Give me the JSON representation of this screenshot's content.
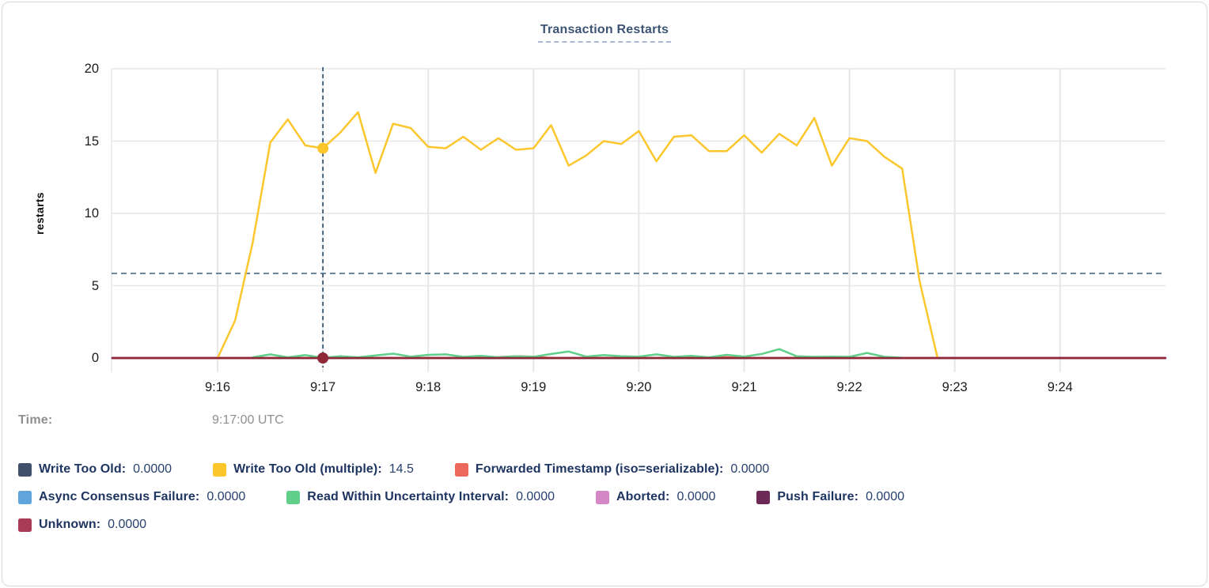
{
  "chart": {
    "title": "Transaction Restarts"
  },
  "chart_data": {
    "type": "line",
    "title": "Transaction Restarts",
    "xlabel": "",
    "ylabel": "restarts",
    "ylim": [
      0,
      20
    ],
    "grid": true,
    "legend_position": "bottom",
    "y_ticks": [
      {
        "label": "0",
        "value": 0
      },
      {
        "label": "5",
        "value": 5
      },
      {
        "label": "10",
        "value": 10
      },
      {
        "label": "15",
        "value": 15
      },
      {
        "label": "20",
        "value": 20
      }
    ],
    "x_ticks": [
      {
        "label": "9:16",
        "sec": 0
      },
      {
        "label": "9:17",
        "sec": 60
      },
      {
        "label": "9:18",
        "sec": 120
      },
      {
        "label": "9:19",
        "sec": 180
      },
      {
        "label": "9:20",
        "sec": 240
      },
      {
        "label": "9:21",
        "sec": 300
      },
      {
        "label": "9:22",
        "sec": 360
      },
      {
        "label": "9:23",
        "sec": 420
      },
      {
        "label": "9:24",
        "sec": 480
      }
    ],
    "colors": {
      "gridline": "#e7e7e7",
      "crosshair_vertical": "#2e5170",
      "crosshair_horizontal": "#4a6d8c"
    },
    "hover": {
      "time_label": "Time:",
      "time": "9:17:00 UTC",
      "x_sec": 60,
      "hline_value": 5.85,
      "dots": [
        {
          "series": "Write Too Old (multiple)",
          "value": 14.5
        },
        {
          "series": "Unknown",
          "value": 0
        }
      ]
    },
    "legend_rows": [
      [
        "Write Too Old",
        "Write Too Old (multiple)",
        "Forwarded Timestamp (iso=serializable)"
      ],
      [
        "Async Consensus Failure",
        "Read Within Uncertainty Interval",
        "Aborted",
        "Push Failure"
      ],
      [
        "Unknown"
      ]
    ],
    "series": [
      {
        "name": "Write Too Old",
        "color": "#40506b",
        "value": "0.0000",
        "points": [
          [
            -60,
            0
          ],
          [
            540,
            0
          ]
        ]
      },
      {
        "name": "Async Consensus Failure",
        "color": "#5fa5db",
        "value": "0.0000",
        "points": [
          [
            -60,
            0
          ],
          [
            540,
            0
          ]
        ]
      },
      {
        "name": "Aborted",
        "color": "#d488c6",
        "value": "0.0000",
        "points": [
          [
            -60,
            0
          ],
          [
            540,
            0
          ]
        ]
      },
      {
        "name": "Push Failure",
        "color": "#6e2a57",
        "value": "0.0000",
        "points": [
          [
            -60,
            0
          ],
          [
            540,
            0
          ]
        ]
      },
      {
        "name": "Forwarded Timestamp (iso=serializable)",
        "color": "#ec685c",
        "value": "0.0000",
        "points": [
          [
            0,
            0
          ],
          [
            150,
            0
          ],
          [
            158,
            0.04
          ],
          [
            165,
            0.1
          ],
          [
            172,
            0.12
          ],
          [
            180,
            0.09
          ],
          [
            188,
            0.03
          ],
          [
            195,
            0
          ],
          [
            280,
            0
          ],
          [
            288,
            0.06
          ],
          [
            296,
            0.04
          ],
          [
            304,
            0
          ],
          [
            410,
            0
          ]
        ]
      },
      {
        "name": "Read Within Uncertainty Interval",
        "color": "#5fcf8a",
        "value": "0.0000",
        "points": [
          [
            20,
            0.05
          ],
          [
            30,
            0.25
          ],
          [
            40,
            0.05
          ],
          [
            50,
            0.2
          ],
          [
            60,
            0.02
          ],
          [
            70,
            0.12
          ],
          [
            80,
            0.05
          ],
          [
            90,
            0.18
          ],
          [
            100,
            0.3
          ],
          [
            110,
            0.1
          ],
          [
            120,
            0.22
          ],
          [
            130,
            0.25
          ],
          [
            140,
            0.08
          ],
          [
            150,
            0.15
          ],
          [
            160,
            0.05
          ],
          [
            170,
            0.12
          ],
          [
            180,
            0.08
          ],
          [
            190,
            0.28
          ],
          [
            200,
            0.45
          ],
          [
            210,
            0.1
          ],
          [
            220,
            0.2
          ],
          [
            230,
            0.12
          ],
          [
            240,
            0.1
          ],
          [
            250,
            0.25
          ],
          [
            260,
            0.08
          ],
          [
            270,
            0.15
          ],
          [
            280,
            0.05
          ],
          [
            290,
            0.22
          ],
          [
            300,
            0.1
          ],
          [
            310,
            0.28
          ],
          [
            320,
            0.62
          ],
          [
            330,
            0.12
          ],
          [
            340,
            0.08
          ],
          [
            350,
            0.1
          ],
          [
            360,
            0.08
          ],
          [
            370,
            0.35
          ],
          [
            380,
            0.08
          ],
          [
            390,
            0.02
          ]
        ]
      },
      {
        "name": "Write Too Old (multiple)",
        "color": "#fcc62d",
        "value": "14.5",
        "points": [
          [
            0,
            0
          ],
          [
            10,
            2.6
          ],
          [
            20,
            8.0
          ],
          [
            30,
            14.9
          ],
          [
            40,
            16.5
          ],
          [
            50,
            14.7
          ],
          [
            60,
            14.5
          ],
          [
            70,
            15.6
          ],
          [
            80,
            17.0
          ],
          [
            90,
            12.8
          ],
          [
            100,
            16.2
          ],
          [
            110,
            15.9
          ],
          [
            120,
            14.6
          ],
          [
            130,
            14.5
          ],
          [
            140,
            15.3
          ],
          [
            150,
            14.4
          ],
          [
            160,
            15.2
          ],
          [
            170,
            14.4
          ],
          [
            180,
            14.5
          ],
          [
            190,
            16.1
          ],
          [
            200,
            13.3
          ],
          [
            210,
            14.0
          ],
          [
            220,
            15.0
          ],
          [
            230,
            14.8
          ],
          [
            240,
            15.7
          ],
          [
            250,
            13.6
          ],
          [
            260,
            15.3
          ],
          [
            270,
            15.4
          ],
          [
            280,
            14.3
          ],
          [
            290,
            14.3
          ],
          [
            300,
            15.4
          ],
          [
            310,
            14.2
          ],
          [
            320,
            15.5
          ],
          [
            330,
            14.7
          ],
          [
            340,
            16.6
          ],
          [
            350,
            13.3
          ],
          [
            360,
            15.2
          ],
          [
            370,
            15.0
          ],
          [
            380,
            13.9
          ],
          [
            390,
            13.1
          ],
          [
            400,
            5.3
          ],
          [
            410,
            0.1
          ]
        ]
      },
      {
        "name": "Unknown",
        "color": "#a83c55",
        "line_color": "#8f2836",
        "value": "0.0000",
        "points": [
          [
            -60,
            0
          ],
          [
            540,
            0
          ]
        ]
      }
    ]
  }
}
